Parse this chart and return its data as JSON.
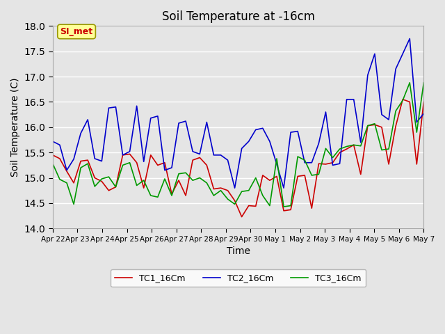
{
  "title": "Soil Temperature at -16cm",
  "xlabel": "Time",
  "ylabel": "Soil Temperature (C)",
  "ylim": [
    14.0,
    18.0
  ],
  "yticks": [
    14.0,
    14.5,
    15.0,
    15.5,
    16.0,
    16.5,
    17.0,
    17.5,
    18.0
  ],
  "xtick_labels": [
    "Apr 22",
    "Apr 23",
    "Apr 24",
    "Apr 25",
    "Apr 26",
    "Apr 27",
    "Apr 28",
    "Apr 29",
    "Apr 30",
    "May 1",
    "May 2",
    "May 3",
    "May 4",
    "May 5",
    "May 6",
    "May 7"
  ],
  "background_color": "#e5e5e5",
  "plot_bg_color": "#e5e5e5",
  "grid_color": "#ffffff",
  "annotation_text": "SI_met",
  "annotation_color": "#cc0000",
  "annotation_bg": "#ffff99",
  "annotation_border": "#999900",
  "legend_entries": [
    "TC1_16Cm",
    "TC2_16Cm",
    "TC3_16Cm"
  ],
  "line_colors": [
    "#cc0000",
    "#0000cc",
    "#009900"
  ],
  "TC1_16Cm": [
    15.45,
    15.38,
    15.13,
    14.9,
    15.33,
    15.35,
    15.0,
    14.93,
    14.75,
    14.82,
    15.45,
    15.47,
    15.3,
    14.8,
    15.45,
    15.25,
    15.3,
    14.68,
    14.95,
    14.65,
    15.35,
    15.4,
    15.25,
    14.78,
    14.8,
    14.75,
    14.55,
    14.23,
    14.45,
    14.44,
    15.05,
    14.95,
    15.03,
    14.35,
    14.37,
    15.03,
    15.05,
    14.4,
    15.28,
    15.27,
    15.3,
    15.5,
    15.57,
    15.65,
    15.07,
    16.03,
    16.05,
    16.0,
    15.27,
    16.02,
    16.55,
    16.5,
    15.27,
    16.5
  ],
  "TC2_16Cm": [
    15.72,
    15.65,
    15.15,
    15.37,
    15.88,
    16.15,
    15.38,
    15.33,
    16.38,
    16.4,
    15.45,
    15.52,
    16.42,
    15.32,
    16.18,
    16.22,
    15.15,
    15.2,
    16.08,
    16.12,
    15.52,
    15.47,
    16.1,
    15.45,
    15.45,
    15.35,
    14.8,
    15.58,
    15.72,
    15.95,
    15.98,
    15.72,
    15.27,
    14.8,
    15.9,
    15.92,
    15.3,
    15.3,
    15.68,
    16.3,
    15.25,
    15.28,
    16.55,
    16.55,
    15.7,
    17.03,
    17.45,
    16.25,
    16.15,
    17.15,
    17.45,
    17.75,
    16.1,
    16.27
  ],
  "TC3_16Cm": [
    15.28,
    14.97,
    14.9,
    14.48,
    15.2,
    15.28,
    14.83,
    14.98,
    15.02,
    14.82,
    15.25,
    15.3,
    14.85,
    14.95,
    14.65,
    14.62,
    14.98,
    14.65,
    15.08,
    15.1,
    14.95,
    15.0,
    14.9,
    14.65,
    14.75,
    14.58,
    14.48,
    14.73,
    14.75,
    15.0,
    14.65,
    14.45,
    15.38,
    14.43,
    14.45,
    15.42,
    15.35,
    15.05,
    15.07,
    15.58,
    15.4,
    15.57,
    15.62,
    15.65,
    15.63,
    16.03,
    16.07,
    15.55,
    15.57,
    16.32,
    16.53,
    16.88,
    15.9,
    16.88
  ]
}
